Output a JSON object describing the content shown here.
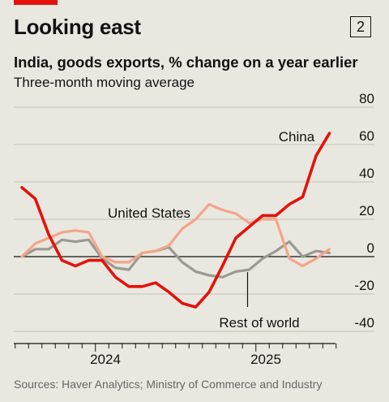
{
  "headline": "Looking east",
  "chart_number": "2",
  "source": "Sources: Haver Analytics; Ministry of Commerce and Industry",
  "colors": {
    "china": "#e3120b",
    "united_states": "#f4a58a",
    "rest_of_world": "#9a9a92",
    "background": "#e9e8e0",
    "accent": "#e3120b"
  },
  "chart_data": {
    "type": "line",
    "title": "India, goods exports, % change on a year earlier",
    "subtitle": "Three-month moving average",
    "x_labels": [
      "2024",
      "2025"
    ],
    "ylim": [
      -40,
      80
    ],
    "yticks": [
      80,
      60,
      40,
      20,
      0,
      -20,
      -40
    ],
    "grid": true,
    "x": [
      "2023-07",
      "2023-08",
      "2023-09",
      "2023-10",
      "2023-11",
      "2023-12",
      "2024-01",
      "2024-02",
      "2024-03",
      "2024-04",
      "2024-05",
      "2024-06",
      "2024-07",
      "2024-08",
      "2024-09",
      "2024-10",
      "2024-11",
      "2024-12",
      "2025-01",
      "2025-02",
      "2025-03",
      "2025-04",
      "2025-05",
      "2025-06"
    ],
    "series": [
      {
        "name": "China",
        "values": [
          37,
          31,
          12,
          -2,
          -5,
          -2,
          -2,
          -11,
          -16,
          -16,
          -14,
          -19,
          -25,
          -27,
          -19,
          -5,
          10,
          16,
          22,
          22,
          28,
          32,
          54,
          66
        ]
      },
      {
        "name": "United States",
        "values": [
          0,
          7,
          10,
          13,
          14,
          13,
          0,
          -3,
          -3,
          2,
          3,
          6,
          15,
          20,
          28,
          25,
          23,
          18,
          20,
          20,
          -1,
          -5,
          -1,
          4
        ]
      },
      {
        "name": "Rest of world",
        "values": [
          0,
          4,
          4,
          9,
          8,
          9,
          -1,
          -6,
          -7,
          2,
          3,
          5,
          -3,
          -8,
          -10,
          -11,
          -8,
          -7,
          -1,
          3,
          8,
          0,
          3,
          2
        ]
      }
    ],
    "annotations": [
      {
        "text": "China",
        "series": "China"
      },
      {
        "text": "United States",
        "series": "United States"
      },
      {
        "text": "Rest of world",
        "series": "Rest of world"
      }
    ]
  }
}
